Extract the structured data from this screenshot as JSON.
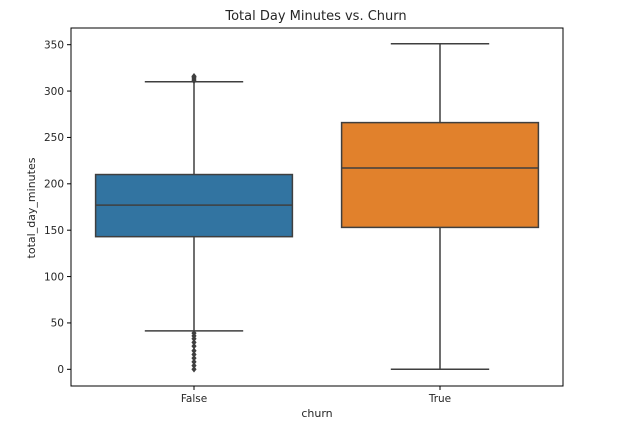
{
  "chart_data": {
    "type": "box",
    "title": "Total Day Minutes vs. Churn",
    "xlabel": "churn",
    "ylabel": "total_day_minutes",
    "ylim": [
      -18,
      368
    ],
    "yticks": [
      0,
      50,
      100,
      150,
      200,
      250,
      300,
      350
    ],
    "categories": [
      "False",
      "True"
    ],
    "series": [
      {
        "category": "False",
        "color": "#3274a1",
        "whisker_low": 41.5,
        "q1": 143,
        "median": 177,
        "q3": 210,
        "whisker_high": 310,
        "outliers": [
          0,
          4,
          8,
          12,
          16,
          20,
          25,
          29,
          33,
          36,
          39,
          311,
          313,
          315,
          316
        ]
      },
      {
        "category": "True",
        "color": "#e1812c",
        "whisker_low": 0,
        "q1": 153,
        "median": 217,
        "q3": 266,
        "whisker_high": 351,
        "outliers": []
      }
    ],
    "grid": false,
    "legend": "none"
  }
}
